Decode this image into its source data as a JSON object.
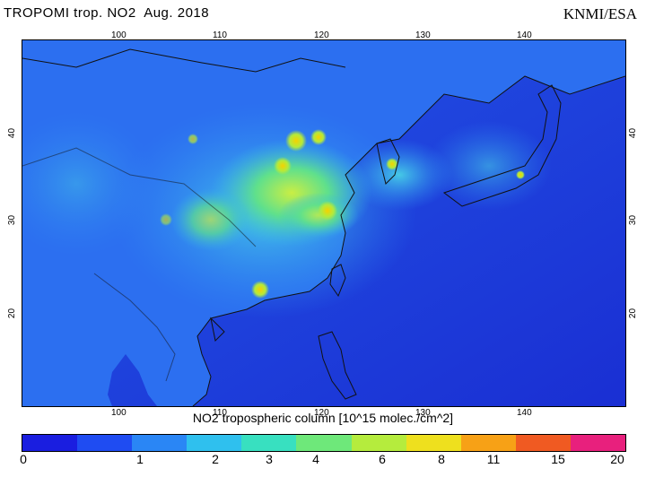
{
  "header": {
    "title": "TROPOMI trop. NO2  Aug. 2018",
    "credit": "KNMI/ESA"
  },
  "map": {
    "lon_ticks_top": [
      "100",
      "110",
      "120",
      "130",
      "140"
    ],
    "lon_ticks_bottom": [
      "100",
      "110",
      "120",
      "130",
      "140"
    ],
    "lat_ticks_left": [
      "40",
      "30",
      "20"
    ],
    "lat_ticks_right": [
      "40",
      "30",
      "20"
    ],
    "colors": {
      "ocean_low": "#1f3fd8",
      "land_low": "#2a6cf0",
      "medium": "#37c7e8",
      "high": "#a9e84a",
      "hotspot": "#f5d200",
      "coast": "#111111"
    }
  },
  "colorbar": {
    "caption": "NO2 tropospheric column [10^15 molec./cm^2]",
    "tick_labels": [
      "0",
      "1",
      "2",
      "3",
      "4",
      "6",
      "8",
      "11",
      "15",
      "20"
    ],
    "colors": [
      "#1a1ee0",
      "#1f4cf2",
      "#2a86f5",
      "#2fc0ee",
      "#38e0c0",
      "#6ee87a",
      "#b5ec3d",
      "#eee01e",
      "#f7a116",
      "#f05a22",
      "#e8207d"
    ]
  }
}
